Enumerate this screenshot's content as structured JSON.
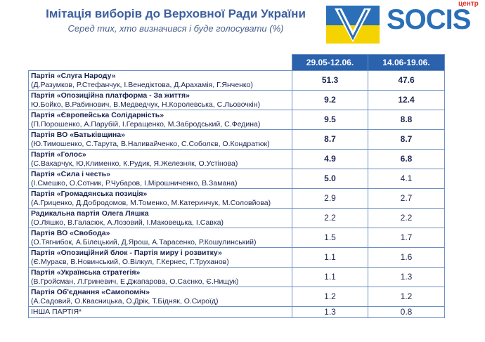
{
  "header": {
    "title": "Імітація виборів до Верховної Ради України",
    "subtitle": "Серед тих, хто визначився і буде голосувати (%)",
    "logo_text": "SOCIS",
    "logo_label": "центр"
  },
  "table": {
    "columns": [
      "29.05-12.06.",
      "14.06-19.06."
    ],
    "rows": [
      {
        "name": "Партія «Слуга Народу»",
        "members": "(Д.Разумков, Р.Стефанчук, І.Венедіктова, Д.Арахамія, Г.Янченко)",
        "values": [
          "51.3",
          "47.6"
        ],
        "bold": [
          true,
          true
        ]
      },
      {
        "name": "Партія «Опозиційна платформа - За життя»",
        "members": "Ю.Бойко, В.Рабинович, В.Медведчук, Н.Королевська, С.Льовочкін)",
        "values": [
          "9.2",
          "12.4"
        ],
        "bold": [
          true,
          true
        ]
      },
      {
        "name": "Партія «Європейська Солідарність»",
        "members": "(П.Порошенко, А.Парубій, І.Геращенко, М.Забродський, С.Федина)",
        "values": [
          "9.5",
          "8.8"
        ],
        "bold": [
          true,
          true
        ]
      },
      {
        "name": "Партія ВО «Батьківщина»",
        "members": "(Ю.Тимошенко, С.Тарута, В.Наливайченко, С.Соболєв, О.Кондратюк)",
        "values": [
          "8.7",
          "8.7"
        ],
        "bold": [
          true,
          true
        ]
      },
      {
        "name": "Партія «Голос»",
        "members": "(С.Вакарчук, Ю,Клименко, К.Рудик, Я.Железняк, О.Устінова)",
        "values": [
          "4.9",
          "6.8"
        ],
        "bold": [
          true,
          true
        ]
      },
      {
        "name": "Партія «Сила і честь»",
        "members": "(І.Смешко, О.Сотник, Р.Чубаров, І.Мірошниченко, В.Замана)",
        "values": [
          "5.0",
          "4.1"
        ],
        "bold": [
          true,
          false
        ]
      },
      {
        "name": "Партія «Громадянська позиція»",
        "members": "(А.Гриценко, Д.Добродомов, М.Томенко, М.Катеринчук, М.Соловйова)",
        "values": [
          "2.9",
          "2.7"
        ],
        "bold": [
          false,
          false
        ]
      },
      {
        "name": "Радикальна партія Олега Ляшка",
        "members": "(О.Ляшко, В.Галасюк, А.Лозовий, І.Маковецька, І.Савка)",
        "values": [
          "2.2",
          "2.2"
        ],
        "bold": [
          false,
          false
        ]
      },
      {
        "name": "Партія ВО «Свобода»",
        "members": "(О.Тягнибок, А.Білецький, Д.Ярош, А.Тарасенко, Р.Кошулинський)",
        "values": [
          "1.5",
          "1.7"
        ],
        "bold": [
          false,
          false
        ]
      },
      {
        "name": "Партія «Опозиційний блок - Партія миру і розвитку»",
        "members": "(Є.Мураєв, В.Новинський, О.Вілкул, Г.Кернес, Г.Труханов)",
        "values": [
          "1.1",
          "1.6"
        ],
        "bold": [
          false,
          false
        ]
      },
      {
        "name": "Партія «Українська стратегія»",
        "members": "(В.Гройсман, Л.Гриневич, Е.Джапарова, О.Саєнко, Є.Нищук)",
        "values": [
          "1.1",
          "1.3"
        ],
        "bold": [
          false,
          false
        ]
      },
      {
        "name": "Партія Об'єднання «Самопоміч»",
        "members": "(А.Садовий, О.Квасницька, О.Дрік, Т.Бідняк, О.Сироїд)",
        "values": [
          "1.2",
          "1.2"
        ],
        "bold": [
          false,
          false
        ]
      },
      {
        "name": "ІНША ПАРТІЯ*",
        "values": [
          "1.3",
          "0.8"
        ],
        "bold": [
          false,
          false
        ]
      }
    ]
  }
}
